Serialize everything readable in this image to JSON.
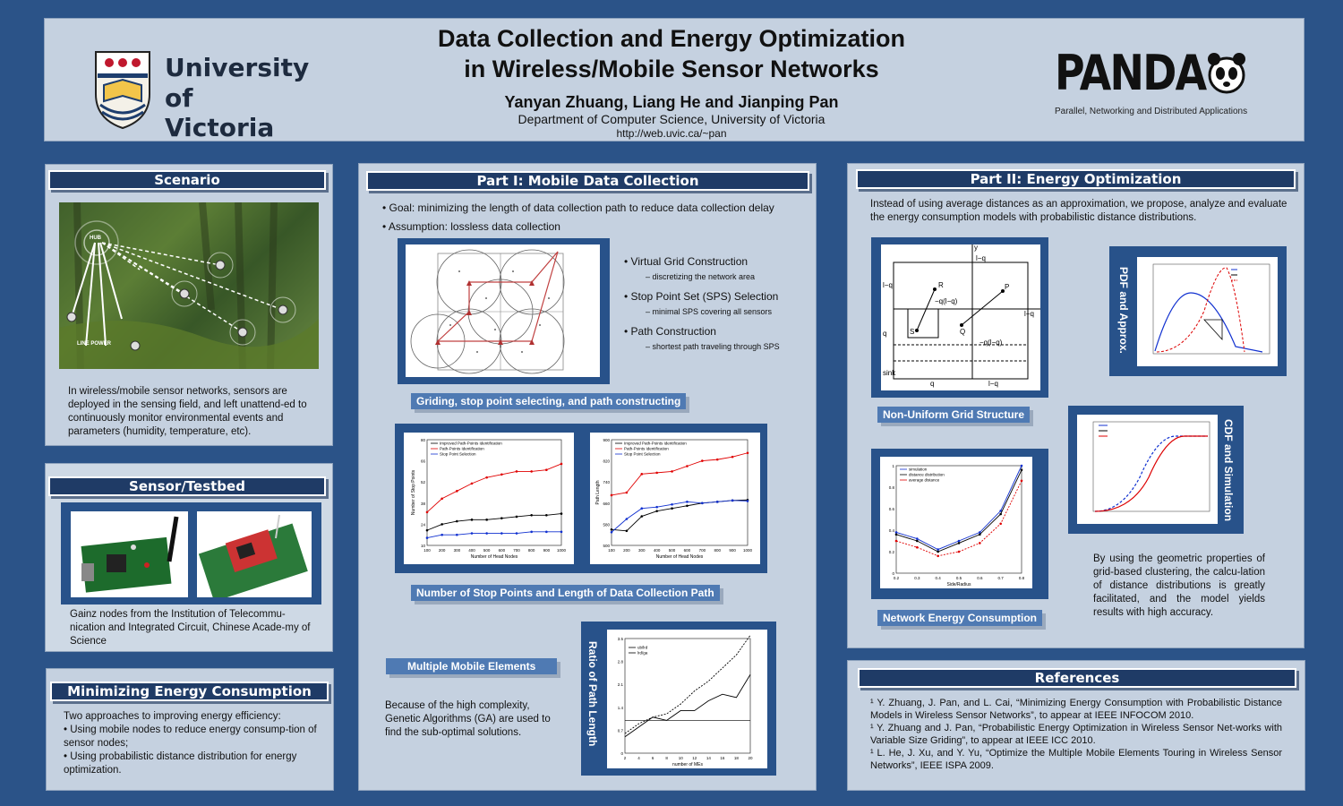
{
  "header": {
    "title_line1": "Data Collection and Energy Optimization",
    "title_line2": "in Wireless/Mobile Sensor Networks",
    "authors": "Yanyan Zhuang, Liang He and Jianping Pan",
    "department": "Department of Computer Science, University of Victoria",
    "url": "http://web.uvic.ca/~pan",
    "uvic_line1": "University",
    "uvic_line2": "of Victoria",
    "panda_logo": "PANDA",
    "panda_tagline": "Parallel, Networking and Distributed Applications"
  },
  "scenario": {
    "heading": "Scenario",
    "photo_hub": "HUB",
    "photo_power": "LINE POWER",
    "text": "In wireless/mobile sensor networks, sensors are deployed in the sensing field, and left unattend-ed to continuously monitor environmental events and parameters (humidity, temperature, etc)."
  },
  "testbed": {
    "heading": "Sensor/Testbed",
    "text": "Gainz nodes from the Institution of Telecommu-nication and Integrated Circuit, Chinese Acade-my of Science"
  },
  "minimizing": {
    "heading": "Minimizing Energy Consumption",
    "lines": [
      "Two approaches to improving energy efficiency:",
      "• Using mobile nodes  to reduce energy consump-tion of sensor nodes;",
      "• Using probabilistic distance distribution for energy optimization."
    ]
  },
  "part1": {
    "heading": "Part I: Mobile Data Collection",
    "bullets": [
      "• Goal: minimizing the length of data collection path to reduce data collection delay",
      "• Assumption: lossless data collection"
    ],
    "steps": [
      {
        "label": "• Virtual Grid Construction",
        "sub": "–   discretizing the network area"
      },
      {
        "label": "• Stop Point Set (SPS) Selection",
        "sub": "–   minimal SPS covering all sensors"
      },
      {
        "label": "• Path Construction",
        "sub": "–   shortest path traveling through SPS"
      }
    ],
    "grid_caption": "Griding, stop point selecting, and path constructing",
    "chart_caption": "Number of Stop Points and Length of Data Collection Path",
    "multi_caption": "Multiple Mobile Elements",
    "ratio_label": "Ratio of Path Length",
    "ga_text": "Because of the high  complexity, Genetic Algorithms (GA)  are used to find the sub-optimal solutions."
  },
  "part2": {
    "heading": "Part II: Energy Optimization",
    "intro": "Instead of using average distances as an approximation, we propose, analyze and evaluate the energy consumption models with probabilistic distance distributions.",
    "grid_caption": "Non-Uniform Grid Structure",
    "pdf_label": "PDF and Approx.",
    "cdf_label": "CDF and Simulation",
    "net_caption": "Network Energy Consumption",
    "result_text": "By using the geometric properties of grid-based clustering, the calcu-lation of distance distributions is greatly facilitated, and the model yields results with high accuracy."
  },
  "references": {
    "heading": "References",
    "items": [
      "¹ Y. Zhuang, J. Pan, and L. Cai, “Minimizing Energy Consumption with Probabilistic Distance Models in Wireless Sensor Networks”, to appear at IEEE INFOCOM 2010.",
      "¹ Y. Zhuang and J. Pan, “Probabilistic Energy Optimization in Wireless Sensor Net-works with Variable Size Griding”, to appear at IEEE ICC 2010.",
      "¹ L. He, J. Xu, and Y. Yu, “Optimize the Multiple Mobile Elements Touring in Wireless Sensor Networks”, IEEE ISPA 2009."
    ]
  },
  "chart_data": [
    {
      "type": "line",
      "title": "",
      "xlabel": "Number of Head Nodes",
      "ylabel": "Number of Stop Points",
      "x": [
        100,
        200,
        300,
        400,
        500,
        600,
        700,
        800,
        900,
        1000
      ],
      "ylim": [
        10,
        80
      ],
      "series": [
        {
          "name": "Improved Path-Points Identification",
          "values": [
            20,
            24,
            26,
            27,
            27,
            28,
            29,
            30,
            30,
            31
          ],
          "color": "#000000"
        },
        {
          "name": "Path-Points Identification",
          "values": [
            32,
            41,
            46,
            51,
            55,
            57,
            59,
            59,
            60,
            64
          ],
          "color": "#e00000"
        },
        {
          "name": "Stop Point Selection",
          "values": [
            15,
            17,
            17,
            18,
            18,
            18,
            18,
            19,
            19,
            19
          ],
          "color": "#1030d0"
        }
      ]
    },
    {
      "type": "line",
      "title": "",
      "xlabel": "Number of Head Nodes",
      "ylabel": "Path Length",
      "x": [
        100,
        200,
        300,
        400,
        500,
        600,
        700,
        800,
        900,
        1000
      ],
      "ylim": [
        500,
        900
      ],
      "series": [
        {
          "name": "Improved Path-Points Identification",
          "values": [
            560,
            555,
            610,
            630,
            640,
            650,
            660,
            665,
            670,
            672
          ],
          "color": "#000000"
        },
        {
          "name": "Path-Points Identification",
          "values": [
            690,
            700,
            770,
            775,
            780,
            800,
            820,
            825,
            835,
            850
          ],
          "color": "#e00000"
        },
        {
          "name": "Stop Point Selection",
          "values": [
            550,
            600,
            640,
            645,
            655,
            665,
            660,
            665,
            670,
            668
          ],
          "color": "#1030d0"
        }
      ]
    },
    {
      "type": "line",
      "title": "",
      "xlabel": "number of MEs",
      "ylabel": "",
      "x": [
        2,
        4,
        6,
        8,
        10,
        12,
        14,
        16,
        18,
        20
      ],
      "ylim": [
        0.0,
        3.5
      ],
      "series": [
        {
          "name": "",
          "values": [
            1.0,
            1.0,
            1.0,
            1.0,
            1.0,
            1.0,
            1.0,
            1.0,
            1.0,
            1.0
          ],
          "style": "thin"
        },
        {
          "name": "ub/lrd",
          "values": [
            0.6,
            0.9,
            1.1,
            1.2,
            1.5,
            1.9,
            2.2,
            2.6,
            3.0,
            3.6
          ],
          "style": "dashed"
        },
        {
          "name": "lrd/ga",
          "values": [
            0.5,
            0.8,
            1.1,
            1.0,
            1.3,
            1.3,
            1.6,
            1.8,
            1.7,
            2.4
          ],
          "style": "solid"
        }
      ]
    },
    {
      "type": "line",
      "title": "",
      "xlabel": "Side/Radius",
      "ylabel": "",
      "x": [
        0.2,
        0.3,
        0.4,
        0.5,
        0.6,
        0.7,
        0.8
      ],
      "ylim": [
        0,
        1
      ],
      "series": [
        {
          "name": "simulation",
          "values": [
            0.38,
            0.32,
            0.22,
            0.3,
            0.38,
            0.58,
            1.0
          ],
          "color": "#1030d0"
        },
        {
          "name": "distance distribution",
          "values": [
            0.36,
            0.3,
            0.2,
            0.28,
            0.36,
            0.55,
            0.96
          ],
          "color": "#000000"
        },
        {
          "name": "average distance",
          "values": [
            0.3,
            0.24,
            0.16,
            0.2,
            0.28,
            0.46,
            0.86
          ],
          "color": "#e00000"
        }
      ]
    }
  ]
}
